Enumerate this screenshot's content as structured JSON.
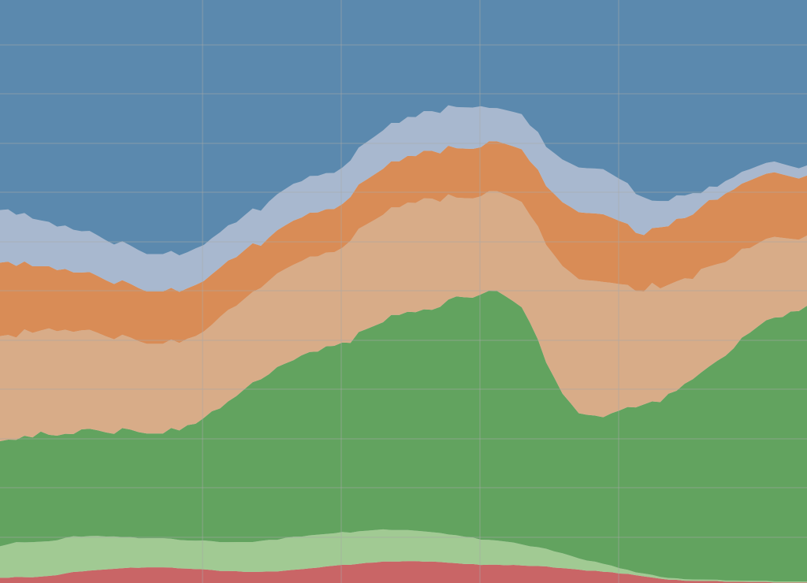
{
  "chart_data": {
    "type": "area",
    "stacked": true,
    "normalized": true,
    "title": "",
    "xlabel": "",
    "ylabel": "",
    "ylim": [
      0,
      1
    ],
    "grid": true,
    "legend": "none",
    "x_count": 100,
    "background_color": "#d9d9d9",
    "series": [
      {
        "color": "#c96566",
        "values": [
          0.005,
          0.005,
          0.006,
          0.006,
          0.006,
          0.007,
          0.008,
          0.009,
          0.011,
          0.013,
          0.014,
          0.015,
          0.016,
          0.017,
          0.018,
          0.019,
          0.02,
          0.02,
          0.021,
          0.021,
          0.021,
          0.021,
          0.02,
          0.02,
          0.019,
          0.019,
          0.018,
          0.017,
          0.017,
          0.017,
          0.016,
          0.016,
          0.016,
          0.016,
          0.016,
          0.017,
          0.018,
          0.019,
          0.02,
          0.021,
          0.023,
          0.024,
          0.025,
          0.025,
          0.026,
          0.027,
          0.027,
          0.028,
          0.028,
          0.028,
          0.028,
          0.028,
          0.027,
          0.027,
          0.026,
          0.025,
          0.024,
          0.023,
          0.023,
          0.022,
          0.022,
          0.022,
          0.021,
          0.021,
          0.02,
          0.019,
          0.018,
          0.017,
          0.015,
          0.014,
          0.013,
          0.012,
          0.011,
          0.011,
          0.01,
          0.01,
          0.009,
          0.009,
          0.008,
          0.007,
          0.006,
          0.005,
          0.004,
          0.004,
          0.003,
          0.003,
          0.003,
          0.003,
          0.003,
          0.002,
          0.002,
          0.002,
          0.002,
          0.002,
          0.002,
          0.001,
          0.001,
          0.001,
          0.001,
          0.001
        ]
      },
      {
        "color": "#a1ca93",
        "values": [
          0.03,
          0.032,
          0.034,
          0.036,
          0.037,
          0.038,
          0.039,
          0.04,
          0.041,
          0.042,
          0.042,
          0.042,
          0.042,
          0.041,
          0.041,
          0.04,
          0.04,
          0.039,
          0.039,
          0.039,
          0.039,
          0.039,
          0.039,
          0.039,
          0.039,
          0.04,
          0.04,
          0.041,
          0.041,
          0.042,
          0.043,
          0.043,
          0.044,
          0.044,
          0.044,
          0.045,
          0.045,
          0.045,
          0.045,
          0.045,
          0.045,
          0.045,
          0.045,
          0.044,
          0.044,
          0.043,
          0.043,
          0.042,
          0.041,
          0.041,
          0.04,
          0.039,
          0.038,
          0.037,
          0.036,
          0.035,
          0.034,
          0.033,
          0.032,
          0.031,
          0.03,
          0.029,
          0.028,
          0.026,
          0.024,
          0.022,
          0.02,
          0.018,
          0.016,
          0.014,
          0.012,
          0.01,
          0.009,
          0.008,
          0.007,
          0.006,
          0.005,
          0.004,
          0.003,
          0.003,
          0.003,
          0.002,
          0.002,
          0.002,
          0.002,
          0.002,
          0.002,
          0.002,
          0.002,
          0.002,
          0.002,
          0.002,
          0.002,
          0.002,
          0.002,
          0.002,
          0.002,
          0.002,
          0.002,
          0.002
        ]
      },
      {
        "color": "#62a35f",
        "values": [
          0.1,
          0.1,
          0.1,
          0.11,
          0.11,
          0.12,
          0.12,
          0.12,
          0.12,
          0.12,
          0.13,
          0.13,
          0.13,
          0.13,
          0.13,
          0.14,
          0.14,
          0.14,
          0.14,
          0.14,
          0.14,
          0.15,
          0.15,
          0.16,
          0.16,
          0.17,
          0.18,
          0.19,
          0.2,
          0.21,
          0.22,
          0.23,
          0.23,
          0.23,
          0.24,
          0.24,
          0.24,
          0.25,
          0.25,
          0.25,
          0.26,
          0.26,
          0.26,
          0.26,
          0.27,
          0.27,
          0.27,
          0.27,
          0.28,
          0.28,
          0.28,
          0.28,
          0.28,
          0.28,
          0.28,
          0.29,
          0.29,
          0.29,
          0.29,
          0.3,
          0.3,
          0.3,
          0.29,
          0.28,
          0.27,
          0.25,
          0.22,
          0.19,
          0.17,
          0.15,
          0.14,
          0.13,
          0.13,
          0.13,
          0.13,
          0.14,
          0.15,
          0.16,
          0.17,
          0.18,
          0.19,
          0.2,
          0.22,
          0.24,
          0.26,
          0.28,
          0.3,
          0.32,
          0.34,
          0.36,
          0.38,
          0.41,
          0.44,
          0.46,
          0.48,
          0.49,
          0.5,
          0.52,
          0.53,
          0.55
        ]
      },
      {
        "color": "#d8ac88",
        "values": [
          0.1,
          0.1,
          0.1,
          0.11,
          0.11,
          0.11,
          0.12,
          0.12,
          0.12,
          0.12,
          0.12,
          0.12,
          0.12,
          0.12,
          0.12,
          0.12,
          0.12,
          0.12,
          0.12,
          0.12,
          0.12,
          0.12,
          0.12,
          0.12,
          0.12,
          0.12,
          0.12,
          0.13,
          0.13,
          0.13,
          0.13,
          0.13,
          0.13,
          0.13,
          0.13,
          0.13,
          0.13,
          0.13,
          0.13,
          0.13,
          0.13,
          0.13,
          0.13,
          0.14,
          0.14,
          0.14,
          0.14,
          0.14,
          0.14,
          0.14,
          0.14,
          0.14,
          0.14,
          0.14,
          0.13,
          0.13,
          0.12,
          0.12,
          0.12,
          0.12,
          0.12,
          0.12,
          0.12,
          0.12,
          0.12,
          0.12,
          0.12,
          0.12,
          0.12,
          0.12,
          0.12,
          0.12,
          0.12,
          0.12,
          0.12,
          0.12,
          0.12,
          0.12,
          0.12,
          0.12,
          0.13,
          0.13,
          0.13,
          0.14,
          0.14,
          0.14,
          0.15,
          0.15,
          0.15,
          0.15,
          0.15,
          0.15,
          0.15,
          0.15,
          0.15,
          0.15,
          0.15,
          0.14,
          0.14,
          0.14
        ]
      },
      {
        "color": "#d98c56",
        "values": [
          0.07,
          0.07,
          0.07,
          0.07,
          0.07,
          0.07,
          0.07,
          0.07,
          0.07,
          0.07,
          0.07,
          0.07,
          0.07,
          0.07,
          0.07,
          0.07,
          0.07,
          0.07,
          0.07,
          0.07,
          0.07,
          0.07,
          0.07,
          0.07,
          0.07,
          0.07,
          0.07,
          0.07,
          0.07,
          0.07,
          0.07,
          0.07,
          0.06,
          0.06,
          0.06,
          0.06,
          0.06,
          0.06,
          0.06,
          0.06,
          0.06,
          0.06,
          0.06,
          0.06,
          0.06,
          0.06,
          0.06,
          0.06,
          0.06,
          0.06,
          0.06,
          0.06,
          0.06,
          0.06,
          0.06,
          0.06,
          0.06,
          0.06,
          0.06,
          0.06,
          0.06,
          0.06,
          0.06,
          0.06,
          0.06,
          0.06,
          0.06,
          0.06,
          0.06,
          0.06,
          0.06,
          0.06,
          0.06,
          0.06,
          0.06,
          0.06,
          0.06,
          0.06,
          0.06,
          0.06,
          0.06,
          0.07,
          0.07,
          0.08,
          0.08,
          0.09,
          0.09,
          0.1,
          0.1,
          0.11,
          0.11,
          0.11,
          0.12,
          0.12,
          0.12,
          0.12,
          0.12,
          0.12,
          0.12,
          0.12
        ]
      },
      {
        "color": "#a8b8cf",
        "values": [
          0.05,
          0.05,
          0.05,
          0.05,
          0.05,
          0.05,
          0.05,
          0.05,
          0.05,
          0.05,
          0.05,
          0.05,
          0.05,
          0.05,
          0.05,
          0.05,
          0.05,
          0.05,
          0.05,
          0.05,
          0.05,
          0.05,
          0.05,
          0.05,
          0.05,
          0.05,
          0.05,
          0.05,
          0.05,
          0.05,
          0.05,
          0.05,
          0.05,
          0.05,
          0.05,
          0.05,
          0.05,
          0.05,
          0.05,
          0.05,
          0.05,
          0.05,
          0.05,
          0.05,
          0.05,
          0.05,
          0.05,
          0.05,
          0.05,
          0.05,
          0.05,
          0.05,
          0.05,
          0.05,
          0.05,
          0.05,
          0.05,
          0.05,
          0.05,
          0.05,
          0.04,
          0.04,
          0.04,
          0.04,
          0.04,
          0.04,
          0.04,
          0.04,
          0.04,
          0.04,
          0.04,
          0.04,
          0.04,
          0.04,
          0.04,
          0.04,
          0.04,
          0.04,
          0.04,
          0.04,
          0.03,
          0.03,
          0.03,
          0.03,
          0.03,
          0.03,
          0.02,
          0.02,
          0.02,
          0.02,
          0.02,
          0.02,
          0.02,
          0.02,
          0.02,
          0.02,
          0.02,
          0.02,
          0.02,
          0.02
        ]
      },
      {
        "color": "#5b89ae",
        "values": [
          0.2,
          0.2,
          0.21,
          0.22,
          0.23,
          0.24,
          0.25,
          0.26,
          0.26,
          0.27,
          0.28,
          0.28,
          0.29,
          0.3,
          0.31,
          0.31,
          0.32,
          0.33,
          0.34,
          0.34,
          0.34,
          0.34,
          0.35,
          0.35,
          0.34,
          0.34,
          0.33,
          0.33,
          0.32,
          0.32,
          0.31,
          0.3,
          0.3,
          0.28,
          0.27,
          0.26,
          0.25,
          0.25,
          0.24,
          0.24,
          0.24,
          0.24,
          0.23,
          0.22,
          0.2,
          0.19,
          0.18,
          0.17,
          0.16,
          0.16,
          0.15,
          0.15,
          0.14,
          0.14,
          0.14,
          0.13,
          0.13,
          0.13,
          0.13,
          0.13,
          0.13,
          0.13,
          0.13,
          0.13,
          0.13,
          0.14,
          0.14,
          0.15,
          0.15,
          0.15,
          0.15,
          0.15,
          0.15,
          0.15,
          0.15,
          0.16,
          0.17,
          0.18,
          0.2,
          0.21,
          0.22,
          0.23,
          0.24,
          0.25,
          0.26,
          0.27,
          0.28,
          0.28,
          0.29,
          0.29,
          0.29,
          0.29,
          0.3,
          0.3,
          0.3,
          0.3,
          0.31,
          0.32,
          0.33,
          0.33
        ]
      }
    ]
  }
}
